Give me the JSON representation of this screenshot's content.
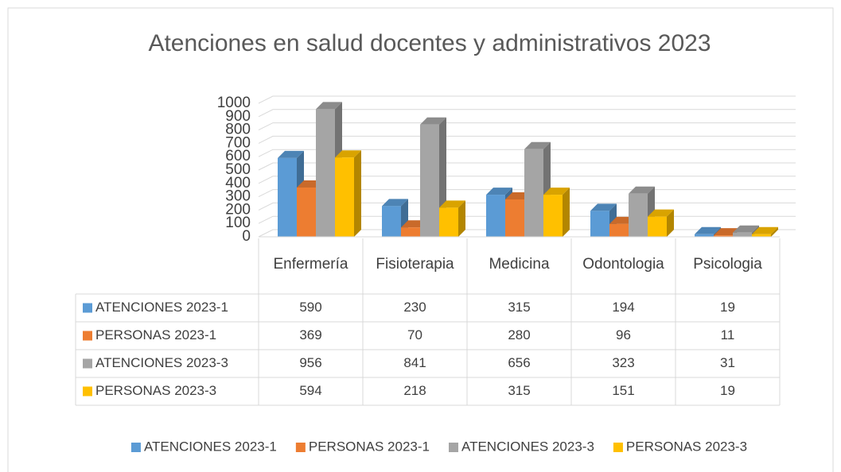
{
  "chart_data": {
    "type": "bar3d",
    "title": "Atenciones en salud docentes y administrativos 2023",
    "categories": [
      "Enfermería",
      "Fisioterapia",
      "Medicina",
      "Odontologia",
      "Psicologia"
    ],
    "series": [
      {
        "name": "ATENCIONES 2023-1",
        "color": "#5b9bd5",
        "values": [
          590,
          230,
          315,
          194,
          19
        ]
      },
      {
        "name": "PERSONAS 2023-1",
        "color": "#ed7d31",
        "values": [
          369,
          70,
          280,
          96,
          11
        ]
      },
      {
        "name": "ATENCIONES 2023-3",
        "color": "#a5a5a5",
        "values": [
          956,
          841,
          656,
          323,
          31
        ]
      },
      {
        "name": "PERSONAS 2023-3",
        "color": "#ffc000",
        "values": [
          594,
          218,
          315,
          151,
          19
        ]
      }
    ],
    "ylim": [
      0,
      1000
    ],
    "yticks": [
      0,
      100,
      200,
      300,
      400,
      500,
      600,
      700,
      800,
      900,
      1000
    ],
    "grid": true,
    "legend": "bottom",
    "data_table": true
  }
}
